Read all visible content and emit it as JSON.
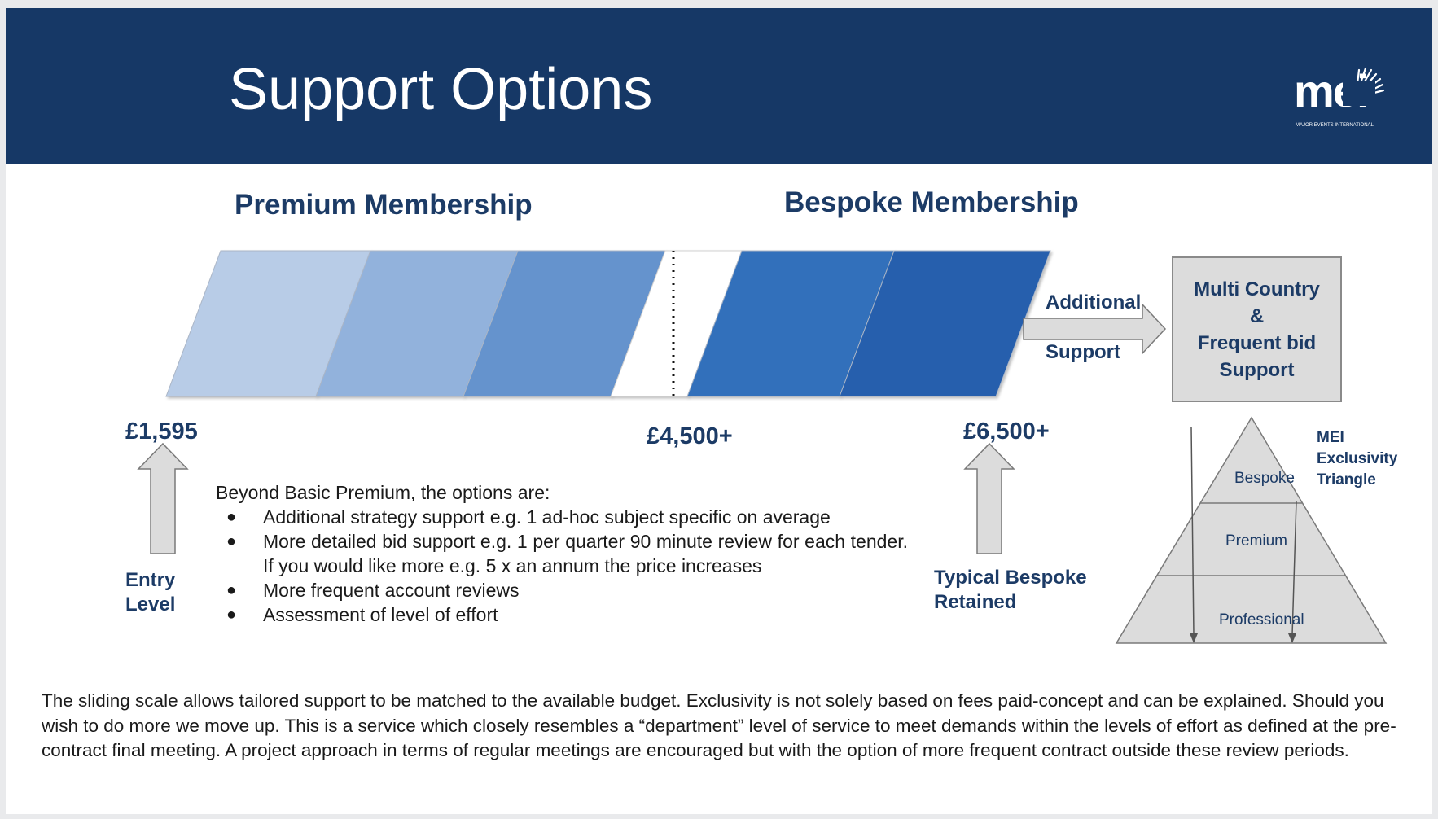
{
  "slide": {
    "title": "Support Options",
    "logo_text": "mei",
    "logo_subtitle": "MAJOR EVENTS INTERNATIONAL"
  },
  "memberships": {
    "premium_heading": "Premium Membership",
    "bespoke_heading": "Bespoke Membership"
  },
  "prices": {
    "entry": "£1,595",
    "mid": "£4,500+",
    "bespoke": "£6,500+"
  },
  "labels": {
    "entry_level_line1": "Entry",
    "entry_level_line2": "Level",
    "typical_line1": "Typical Bespoke",
    "typical_line2": "Retained",
    "additional": "Additional",
    "support": "Support"
  },
  "multi_country_box": {
    "lines": [
      "Multi Country",
      "&",
      "Frequent bid",
      "Support"
    ]
  },
  "options": {
    "intro": "Beyond Basic Premium, the options are:",
    "items": [
      "Additional strategy support e.g. 1 ad-hoc subject specific on average",
      "More detailed bid support e.g. 1 per quarter 90 minute review for each tender.  If you would like more e.g. 5 x an annum the price increases",
      "More frequent account reviews",
      "Assessment of level of effort"
    ]
  },
  "triangle": {
    "title_lines": [
      "MEI",
      "Exclusivity",
      "Triangle"
    ],
    "tiers": [
      "Bespoke",
      "Premium",
      "Professional"
    ]
  },
  "footer": "The sliding scale allows tailored support to be matched to the available budget. Exclusivity is not solely based on fees paid-concept and can be explained. Should you wish to do more we move up. This is a service which closely resembles a “department” level of service to meet demands within the levels of effort as defined at the pre-contract final meeting. A project approach in terms of regular meetings are encouraged but with the option of more frequent contract outside these review periods.",
  "colors": {
    "header_bg": "#163866",
    "heading_text": "#1c3b66",
    "scale_1": "#b8cce7",
    "scale_2": "#92b2dc",
    "scale_3": "#6593cd",
    "scale_4": "#3370bb",
    "scale_5": "#265ead",
    "arrow_fill": "#dcdcdc"
  }
}
